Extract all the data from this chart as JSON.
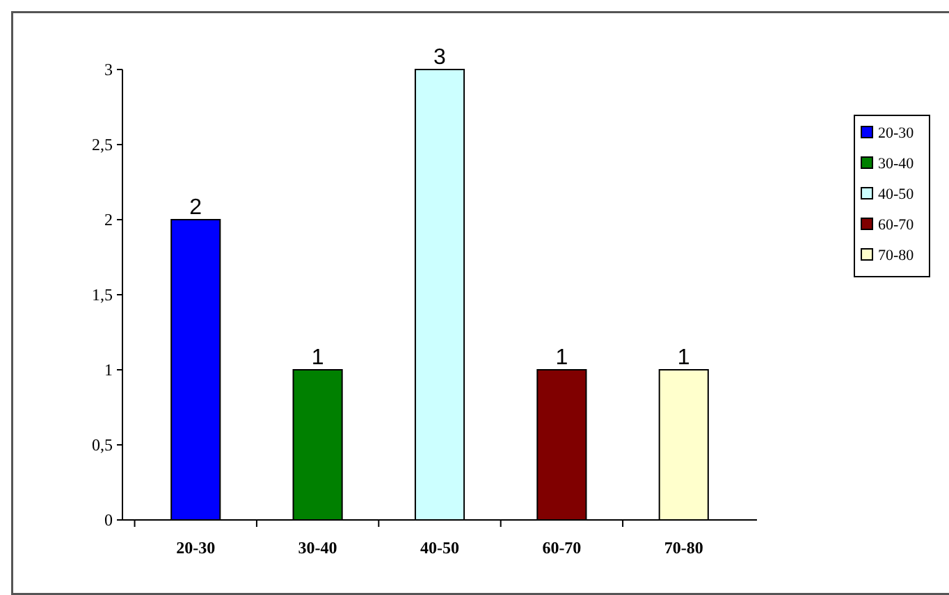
{
  "chart_data": {
    "type": "bar",
    "categories": [
      "20-30",
      "30-40",
      "40-50",
      "60-70",
      "70-80"
    ],
    "series": [
      {
        "name": "20-30",
        "color": "#0000ff",
        "values": [
          2,
          null,
          null,
          null,
          null
        ]
      },
      {
        "name": "30-40",
        "color": "#008000",
        "values": [
          null,
          1,
          null,
          null,
          null
        ]
      },
      {
        "name": "40-50",
        "color": "#ccffff",
        "values": [
          null,
          null,
          3,
          null,
          null
        ]
      },
      {
        "name": "60-70",
        "color": "#800000",
        "values": [
          null,
          null,
          null,
          1,
          null
        ]
      },
      {
        "name": "70-80",
        "color": "#ffffcc",
        "values": [
          null,
          null,
          null,
          null,
          1
        ]
      }
    ],
    "stacked": true,
    "ylim": [
      0,
      3
    ],
    "yticks": [
      0,
      {
        "value": 0.5,
        "label": "0,5"
      },
      1,
      {
        "value": 1.5,
        "label": "1,5"
      },
      2,
      {
        "value": 2.5,
        "label": "2,5"
      },
      3
    ],
    "data_labels": true,
    "legend": "right",
    "grid": false
  }
}
